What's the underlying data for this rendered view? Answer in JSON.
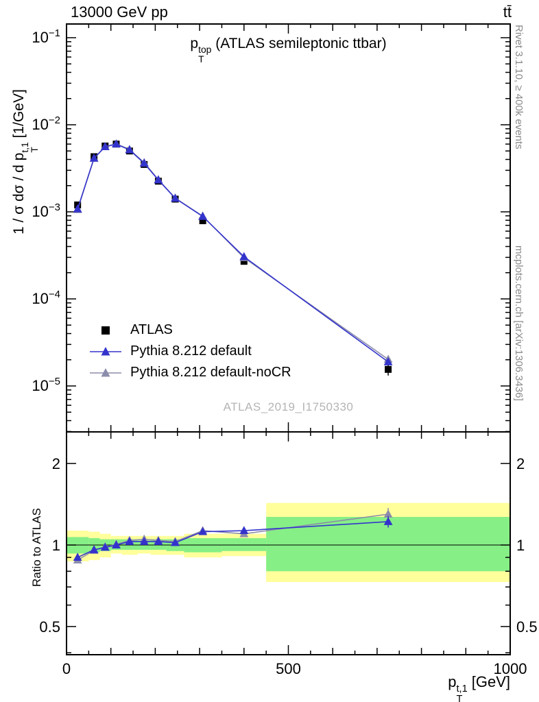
{
  "header": {
    "left": "13000 GeV pp",
    "right": "tt̄"
  },
  "side_notes": {
    "top": "Rivet 3.1.10, ≥ 400k events",
    "bottom": "mcplots.cern.ch [arXiv:1306.3436]"
  },
  "watermark": "ATLAS_2019_I1750330",
  "legend": [
    {
      "label": "ATLAS",
      "marker": "square",
      "color": "#000000"
    },
    {
      "label": "Pythia 8.212 default",
      "marker": "triangle",
      "color": "#3333cc"
    },
    {
      "label": "Pythia 8.212 default-noCR",
      "marker": "triangle",
      "color": "#8c8cab"
    }
  ],
  "chart_data": {
    "type": "line",
    "title": "p_{T}^{top} (ATLAS semileptonic ttbar)",
    "xlabel": "p_{T}^{t,1} [GeV]",
    "ylabel_main": "1 / σ dσ / d p_{T}^{t,1} [1/GeV]",
    "ylabel_ratio": "Ratio to ATLAS",
    "xlim": [
      0,
      1000
    ],
    "ylim_main": [
      3e-06,
      0.144
    ],
    "ylim_ratio": [
      0.39,
      2.6
    ],
    "xticks": [
      0,
      500,
      1000
    ],
    "yticks_main_exponents": [
      -1,
      -2,
      -3,
      -4,
      -5
    ],
    "yticks_ratio": [
      2,
      1,
      0.5
    ],
    "x": [
      25,
      62,
      87,
      112,
      142,
      175,
      207,
      245,
      307,
      400,
      725
    ],
    "series": [
      {
        "name": "ATLAS",
        "kind": "data",
        "color": "#000000",
        "marker": "square",
        "y": [
          0.0012,
          0.0043,
          0.0057,
          0.006,
          0.005,
          0.0035,
          0.00225,
          0.0014,
          0.00079,
          0.00027,
          1.55e-05
        ],
        "yerr_frac": [
          0.07,
          0.04,
          0.03,
          0.03,
          0.03,
          0.03,
          0.03,
          0.04,
          0.04,
          0.06,
          0.15
        ]
      },
      {
        "name": "Pythia 8.212 default",
        "kind": "mc",
        "color": "#3333cc",
        "marker": "triangle",
        "y": [
          0.00108,
          0.00413,
          0.00559,
          0.006,
          0.00515,
          0.00361,
          0.00232,
          0.00143,
          0.000885,
          0.000305,
          1.89e-05
        ],
        "ratio": [
          0.9,
          0.96,
          0.98,
          1.0,
          1.03,
          1.03,
          1.03,
          1.02,
          1.12,
          1.13,
          1.22
        ],
        "ratio_err": [
          0.02,
          0.015,
          0.012,
          0.01,
          0.012,
          0.012,
          0.012,
          0.015,
          0.02,
          0.03,
          0.06
        ]
      },
      {
        "name": "Pythia 8.212 default-noCR",
        "kind": "mc",
        "color": "#8c8cab",
        "marker": "triangle",
        "y": [
          0.00106,
          0.00411,
          0.00561,
          0.00603,
          0.0052,
          0.00368,
          0.00234,
          0.00144,
          0.000893,
          0.000297,
          2.02e-05
        ],
        "ratio": [
          0.88,
          0.955,
          0.985,
          1.005,
          1.04,
          1.05,
          1.04,
          1.03,
          1.13,
          1.1,
          1.3
        ],
        "ratio_err": [
          0.02,
          0.015,
          0.012,
          0.01,
          0.012,
          0.012,
          0.012,
          0.015,
          0.02,
          0.03,
          0.07
        ]
      }
    ],
    "ratio_bands": {
      "yellow_color": "#ffff9c",
      "green_color": "#86ef86",
      "bins": [
        [
          0,
          50
        ],
        [
          50,
          75
        ],
        [
          75,
          100
        ],
        [
          100,
          125
        ],
        [
          125,
          160
        ],
        [
          160,
          190
        ],
        [
          190,
          225
        ],
        [
          225,
          265
        ],
        [
          265,
          350
        ],
        [
          350,
          450
        ],
        [
          450,
          1000
        ]
      ],
      "yellow": [
        [
          0.87,
          1.13
        ],
        [
          0.88,
          1.12
        ],
        [
          0.9,
          1.1
        ],
        [
          0.93,
          1.08
        ],
        [
          0.92,
          1.08
        ],
        [
          0.93,
          1.08
        ],
        [
          0.92,
          1.08
        ],
        [
          0.92,
          1.08
        ],
        [
          0.9,
          1.1
        ],
        [
          0.91,
          1.1
        ],
        [
          0.73,
          1.43
        ]
      ],
      "green": [
        [
          0.93,
          1.07
        ],
        [
          0.94,
          1.06
        ],
        [
          0.95,
          1.05
        ],
        [
          0.96,
          1.05
        ],
        [
          0.96,
          1.05
        ],
        [
          0.96,
          1.04
        ],
        [
          0.96,
          1.05
        ],
        [
          0.95,
          1.05
        ],
        [
          0.94,
          1.06
        ],
        [
          0.95,
          1.06
        ],
        [
          0.8,
          1.27
        ]
      ]
    }
  }
}
